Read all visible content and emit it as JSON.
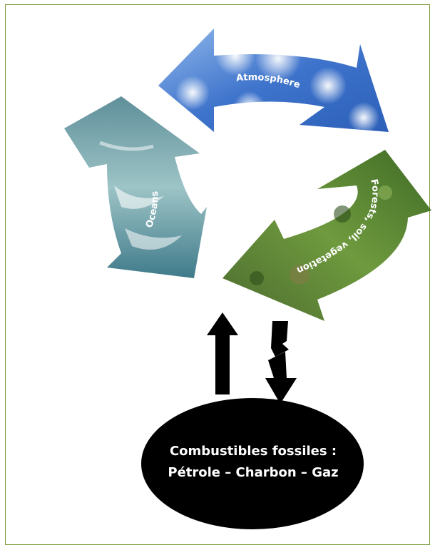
{
  "cycle": {
    "atmosphere_label": "Atmosphere",
    "oceans_label": "Oceans",
    "forests_label": "Forests, soil, vegetation"
  },
  "fossil": {
    "line1": "Combustibles fossiles :",
    "line2": "Pétrole – Charbon – Gaz"
  },
  "colors": {
    "frame": "#7a9a3a",
    "sky": "#4f86d6",
    "ocean": "#6f9fa6",
    "forest": "#4f7a2e",
    "arrow": "#000000"
  }
}
